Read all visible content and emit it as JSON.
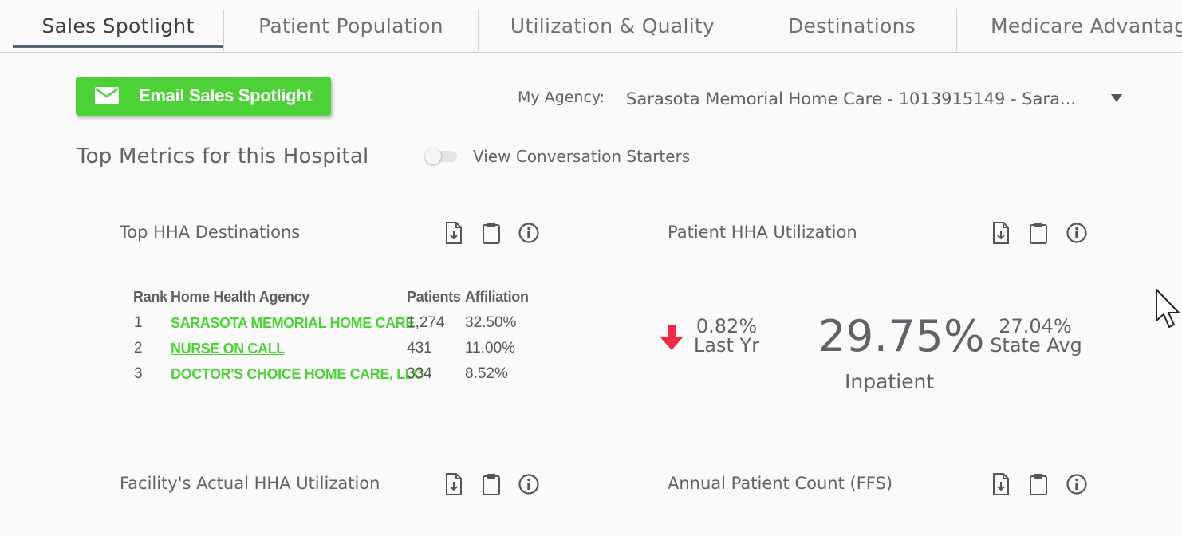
{
  "tabs": [
    {
      "label": "Sales Spotlight",
      "active": true
    },
    {
      "label": "Patient Population"
    },
    {
      "label": "Utilization & Quality"
    },
    {
      "label": "Destinations"
    },
    {
      "label": "Medicare Advantag"
    }
  ],
  "toolbar": {
    "email_button": "Email Sales Spotlight",
    "agency_label": "My Agency:",
    "agency_value": "Sarasota Memorial Home Care - 1013915149 - Sara..."
  },
  "section": {
    "title": "Top Metrics for this Hospital",
    "toggle_label": "View Conversation Starters",
    "toggle_on": false
  },
  "cards": {
    "top_hha": {
      "title": "Top HHA Destinations",
      "columns": [
        "Rank",
        "Home Health Agency",
        "Patients",
        "Affiliation"
      ],
      "rows": [
        {
          "rank": "1",
          "agency": "SARASOTA MEMORIAL HOME CARE",
          "patients": "1,274",
          "affiliation": "32.50%"
        },
        {
          "rank": "2",
          "agency": "NURSE ON CALL",
          "patients": "431",
          "affiliation": "11.00%"
        },
        {
          "rank": "3",
          "agency": "DOCTOR'S CHOICE HOME CARE, LLC",
          "patients": "334",
          "affiliation": "8.52%"
        }
      ]
    },
    "patient_hha": {
      "title": "Patient HHA Utilization",
      "change_value": "0.82%",
      "change_label": "Last Yr",
      "main_value": "29.75%",
      "main_label": "Inpatient",
      "state_value": "27.04%",
      "state_label": "State Avg",
      "trend": "down"
    },
    "facility_hha": {
      "title": "Facility's Actual HHA Utilization"
    },
    "annual_count": {
      "title": "Annual Patient Count (FFS)"
    }
  },
  "colors": {
    "accent": "#4cd137",
    "down_arrow": "#ee2b45",
    "text": "#5f6368"
  }
}
